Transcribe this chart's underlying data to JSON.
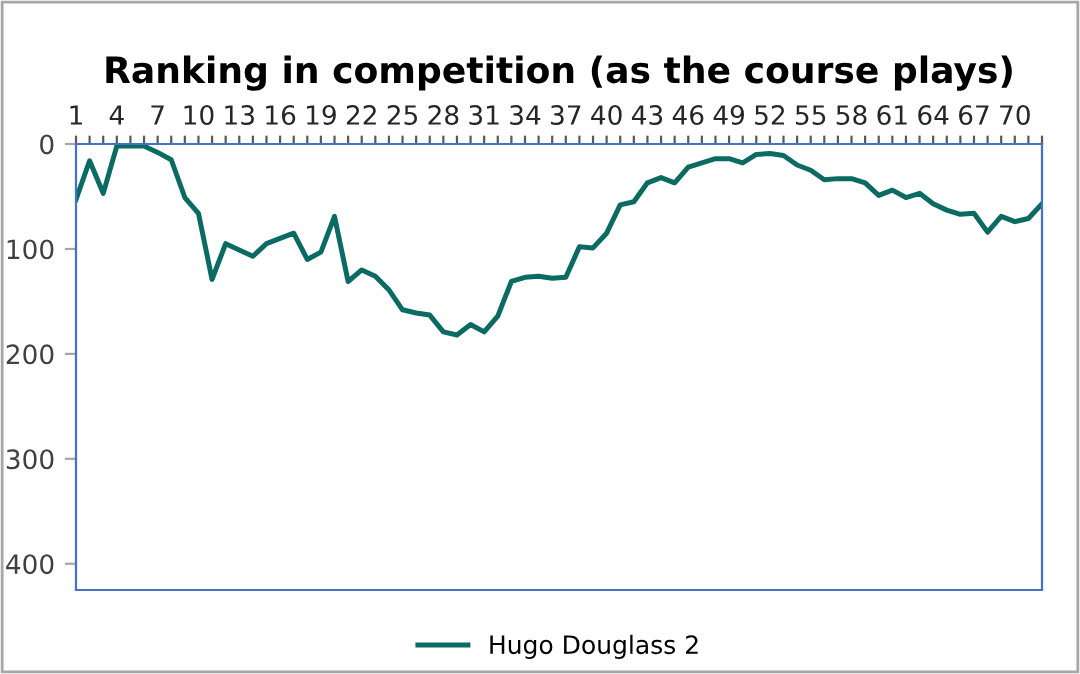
{
  "chart_data": {
    "type": "line",
    "title": "Ranking in competition (as the course plays)",
    "categories": [
      "1",
      null,
      null,
      "4",
      null,
      null,
      "7",
      null,
      null,
      "10",
      null,
      null,
      "13",
      null,
      null,
      "16",
      null,
      null,
      "19",
      null,
      null,
      "22",
      null,
      null,
      "25",
      null,
      null,
      "28",
      null,
      null,
      "31",
      null,
      null,
      "34",
      null,
      null,
      "37",
      null,
      null,
      "40",
      null,
      null,
      "43",
      null,
      null,
      "46",
      null,
      null,
      "49",
      null,
      null,
      "52",
      null,
      null,
      "55",
      null,
      null,
      "58",
      null,
      null,
      "61",
      null,
      null,
      "64",
      null,
      null,
      "67",
      null,
      null,
      "70",
      null,
      null
    ],
    "series": [
      {
        "name": "Hugo Douglass 2",
        "color": "#0b6b63",
        "values": [
          53,
          16,
          47,
          2,
          2,
          2,
          8,
          15,
          51,
          66,
          129,
          95,
          101,
          107,
          95,
          90,
          85,
          110,
          103,
          69,
          131,
          120,
          126,
          139,
          158,
          161,
          163,
          179,
          182,
          172,
          179,
          164,
          131,
          127,
          126,
          128,
          127,
          98,
          99,
          85,
          58,
          55,
          37,
          32,
          37,
          22,
          18,
          14,
          14,
          18,
          10,
          9,
          11,
          20,
          25,
          34,
          33,
          33,
          37,
          49,
          44,
          51,
          47,
          57,
          63,
          67,
          66,
          84,
          69,
          74,
          71,
          57
        ]
      }
    ],
    "ylim": [
      425,
      0
    ],
    "yticks": [
      0,
      100,
      200,
      300,
      400
    ],
    "grid": false,
    "legend": "bottom",
    "marker": "none",
    "line_style": "solid"
  }
}
